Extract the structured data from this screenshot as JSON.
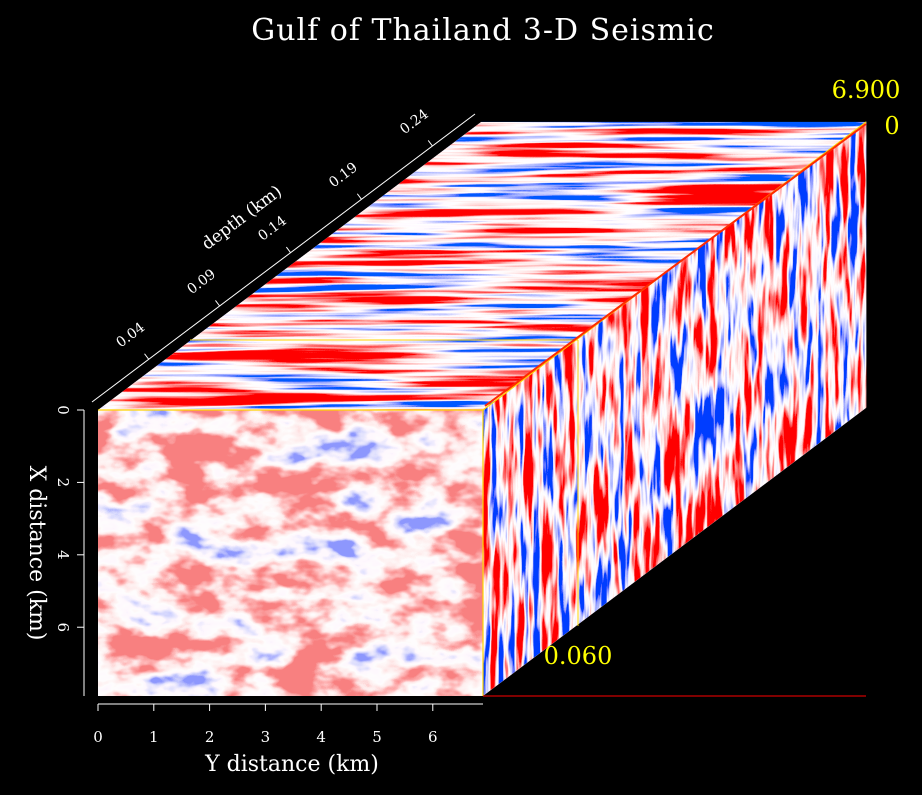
{
  "chart_data": {
    "type": "heatmap",
    "title": "Gulf of Thailand 3-D Seismic",
    "colormap": {
      "positive": "#ff0000",
      "zero": "#ffffff",
      "negative": "#0000ff"
    },
    "background": "#000000",
    "annotation_color": "#ffff00",
    "x_axis": {
      "label": "Y distance (km)",
      "ticks": [
        "0",
        "1",
        "2",
        "3",
        "4",
        "5",
        "6"
      ],
      "range": [
        0,
        6.9
      ]
    },
    "y_axis": {
      "label": "X distance (km)",
      "ticks": [
        "0",
        "2",
        "4",
        "6"
      ],
      "range": [
        0,
        7.9
      ]
    },
    "depth_axis": {
      "label": "depth (km)",
      "ticks": [
        "0.04",
        "0.09",
        "0.14",
        "0.19",
        "0.24"
      ],
      "range": [
        0,
        0.27
      ]
    },
    "slice_positions": {
      "y_max_label": "6.900",
      "x_label": "0",
      "depth_label": "0.060"
    },
    "panels": [
      "front (Y distance vs X distance)",
      "top (Y distance vs depth)",
      "side (depth vs X distance)"
    ]
  }
}
